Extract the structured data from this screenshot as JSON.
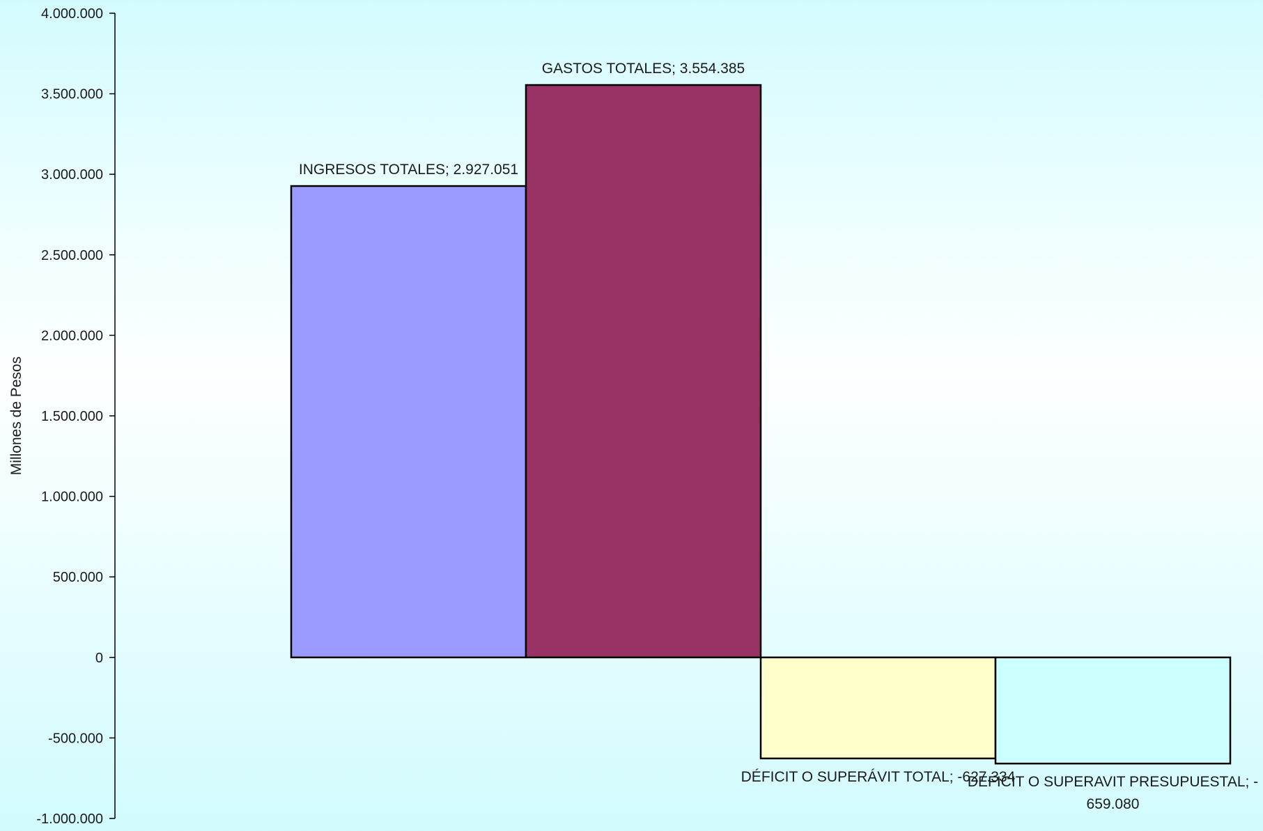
{
  "chart_data": {
    "type": "bar",
    "ylabel": "Millones de Pesos",
    "ylim": [
      -1000000,
      4000000
    ],
    "y_ticks": [
      {
        "value": 4000000,
        "label": "4.000.000"
      },
      {
        "value": 3500000,
        "label": "3.500.000"
      },
      {
        "value": 3000000,
        "label": "3.000.000"
      },
      {
        "value": 2500000,
        "label": "2.500.000"
      },
      {
        "value": 2000000,
        "label": "2.000.000"
      },
      {
        "value": 1500000,
        "label": "1.500.000"
      },
      {
        "value": 1000000,
        "label": "1.000.000"
      },
      {
        "value": 500000,
        "label": "500.000"
      },
      {
        "value": 0,
        "label": "0"
      },
      {
        "value": -500000,
        "label": "-500.000"
      },
      {
        "value": -1000000,
        "label": "-1.000.000"
      }
    ],
    "grid": false,
    "categories": [
      "INGRESOS TOTALES",
      "GASTOS  TOTALES",
      "DÉFICIT O SUPERÁVIT TOTAL",
      "DEFICIT O SUPERAVIT PRESUPUESTAL"
    ],
    "values": [
      2927051,
      3554385,
      -627334,
      -659080
    ],
    "colors": [
      "#9b9bff",
      "#993366",
      "#ffffcc",
      "#ccffff"
    ],
    "data_labels": [
      [
        "INGRESOS TOTALES; 2.927.051"
      ],
      [
        "GASTOS  TOTALES; 3.554.385"
      ],
      [
        "DÉFICIT O SUPERÁVIT TOTAL; -627.334"
      ],
      [
        "DEFICIT O SUPERAVIT PRESUPUESTAL; -",
        "659.080"
      ]
    ]
  }
}
